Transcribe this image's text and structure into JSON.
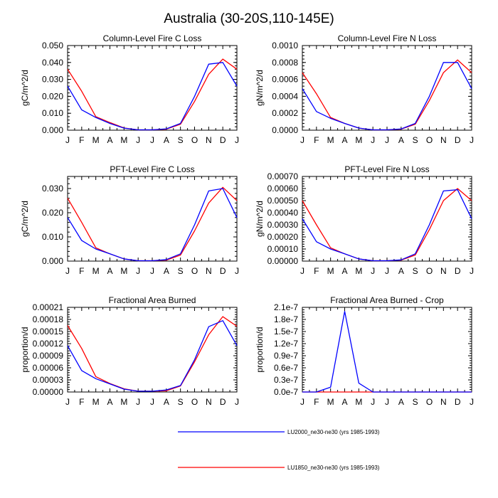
{
  "title": "Australia (30-20S,110-145E)",
  "colors": {
    "lu2000": "#0000ff",
    "lu1850": "#ff0000",
    "axis": "#000000"
  },
  "legend": [
    {
      "label": "LU2000_ne30-ne30 (yrs 1985-1993)",
      "color": "#0000ff"
    },
    {
      "label": "LU1850_ne30-ne30 (yrs 1985-1993)",
      "color": "#ff0000"
    }
  ],
  "chart_data": [
    {
      "type": "line",
      "title": "Column-Level Fire C Loss",
      "ylabel": "gC/m^2/d",
      "xlabel": "",
      "categories": [
        "J",
        "F",
        "M",
        "A",
        "M",
        "J",
        "J",
        "A",
        "S",
        "O",
        "N",
        "D",
        "J"
      ],
      "ylim": [
        0,
        0.05
      ],
      "yticks": [
        "0.000",
        "0.010",
        "0.020",
        "0.030",
        "0.040",
        "0.050"
      ],
      "series": [
        {
          "name": "LU2000_ne30-ne30 (yrs 1985-1993)",
          "color": "#0000ff",
          "values": [
            0.026,
            0.012,
            0.0075,
            0.004,
            0.0012,
            0.0002,
            0.0002,
            0.0008,
            0.004,
            0.02,
            0.039,
            0.04,
            0.026
          ]
        },
        {
          "name": "LU1850_ne30-ne30 (yrs 1985-1993)",
          "color": "#ff0000",
          "values": [
            0.036,
            0.023,
            0.008,
            0.0045,
            0.0013,
            0.0002,
            0.0002,
            0.0006,
            0.0035,
            0.017,
            0.033,
            0.042,
            0.036
          ]
        }
      ]
    },
    {
      "type": "line",
      "title": "Column-Level Fire N Loss",
      "ylabel": "gN/m^2/d",
      "xlabel": "",
      "categories": [
        "J",
        "F",
        "M",
        "A",
        "M",
        "J",
        "J",
        "A",
        "S",
        "O",
        "N",
        "D",
        "J"
      ],
      "ylim": [
        0,
        0.001
      ],
      "yticks": [
        "0.0000",
        "0.0002",
        "0.0004",
        "0.0006",
        "0.0008",
        "0.0010"
      ],
      "series": [
        {
          "name": "LU2000_ne30-ne30 (yrs 1985-1993)",
          "color": "#0000ff",
          "values": [
            0.00049,
            0.00022,
            0.00014,
            8e-05,
            2.5e-05,
            4e-06,
            4e-06,
            1.5e-05,
            8e-05,
            0.0004,
            0.0008,
            0.0008,
            0.00049
          ]
        },
        {
          "name": "LU1850_ne30-ne30 (yrs 1985-1993)",
          "color": "#ff0000",
          "values": [
            0.00068,
            0.00043,
            0.00015,
            8e-05,
            2.5e-05,
            4e-06,
            4e-06,
            1.2e-05,
            7e-05,
            0.00035,
            0.00068,
            0.00083,
            0.00068
          ]
        }
      ]
    },
    {
      "type": "line",
      "title": "PFT-Level Fire C Loss",
      "ylabel": "gC/m^2/d",
      "xlabel": "",
      "categories": [
        "J",
        "F",
        "M",
        "A",
        "M",
        "J",
        "J",
        "A",
        "S",
        "O",
        "N",
        "D",
        "J"
      ],
      "ylim": [
        0,
        0.035
      ],
      "yticks": [
        "0.000",
        "0.010",
        "0.020",
        "0.030"
      ],
      "ytickvalues": [
        0,
        0.01,
        0.02,
        0.03
      ],
      "series": [
        {
          "name": "LU2000_ne30-ne30 (yrs 1985-1993)",
          "color": "#0000ff",
          "values": [
            0.018,
            0.0085,
            0.005,
            0.003,
            0.0009,
            0.00015,
            0.00015,
            0.0006,
            0.003,
            0.015,
            0.029,
            0.03,
            0.018
          ]
        },
        {
          "name": "LU1850_ne30-ne30 (yrs 1985-1993)",
          "color": "#ff0000",
          "values": [
            0.026,
            0.016,
            0.0055,
            0.003,
            0.0009,
            0.00015,
            0.00015,
            0.0004,
            0.0025,
            0.0125,
            0.024,
            0.0305,
            0.025
          ]
        }
      ]
    },
    {
      "type": "line",
      "title": "PFT-Level Fire N Loss",
      "ylabel": "gN/m^2/d",
      "xlabel": "",
      "categories": [
        "J",
        "F",
        "M",
        "A",
        "M",
        "J",
        "J",
        "A",
        "S",
        "O",
        "N",
        "D",
        "J"
      ],
      "ylim": [
        0,
        0.0007
      ],
      "yticks": [
        "0.00000",
        "0.00010",
        "0.00020",
        "0.00030",
        "0.00040",
        "0.00050",
        "0.00060",
        "0.00070"
      ],
      "series": [
        {
          "name": "LU2000_ne30-ne30 (yrs 1985-1993)",
          "color": "#0000ff",
          "values": [
            0.00035,
            0.00016,
            0.0001,
            6e-05,
            1.8e-05,
            3e-06,
            3e-06,
            1e-05,
            6e-05,
            0.0003,
            0.00058,
            0.00059,
            0.00035
          ]
        },
        {
          "name": "LU1850_ne30-ne30 (yrs 1985-1993)",
          "color": "#ff0000",
          "values": [
            0.0005,
            0.0003,
            0.00011,
            6e-05,
            1.8e-05,
            3e-06,
            3e-06,
            8e-06,
            5e-05,
            0.00026,
            0.0005,
            0.0006,
            0.0005
          ]
        }
      ]
    },
    {
      "type": "line",
      "title": "Fractional Area Burned",
      "ylabel": "proportion/d",
      "xlabel": "",
      "categories": [
        "J",
        "F",
        "M",
        "A",
        "M",
        "J",
        "J",
        "A",
        "S",
        "O",
        "N",
        "D",
        "J"
      ],
      "ylim": [
        0,
        0.00021
      ],
      "yticks": [
        "0.00000",
        "0.00003",
        "0.00006",
        "0.00009",
        "0.00012",
        "0.00015",
        "0.00018",
        "0.00021"
      ],
      "series": [
        {
          "name": "LU2000_ne30-ne30 (yrs 1985-1993)",
          "color": "#0000ff",
          "values": [
            0.000115,
            5.3e-05,
            3.3e-05,
            2e-05,
            7e-06,
            2e-06,
            2e-06,
            5e-06,
            1.6e-05,
            8e-05,
            0.000162,
            0.000177,
            0.000115
          ]
        },
        {
          "name": "LU1850_ne30-ne30 (yrs 1985-1993)",
          "color": "#ff0000",
          "values": [
            0.000165,
            0.000108,
            3.8e-05,
            2.1e-05,
            8e-06,
            2e-06,
            2e-06,
            3e-06,
            1.5e-05,
            7.5e-05,
            0.000142,
            0.000187,
            0.000163
          ]
        }
      ]
    },
    {
      "type": "line",
      "title": "Fractional Area Burned - Crop",
      "ylabel": "proportion/d",
      "xlabel": "",
      "categories": [
        "J",
        "F",
        "M",
        "A",
        "M",
        "J",
        "J",
        "A",
        "S",
        "O",
        "N",
        "D",
        "J"
      ],
      "ylim": [
        0,
        2.1e-07
      ],
      "yticks": [
        "0.0e-7",
        "0.3e-7",
        "0.6e-7",
        "0.9e-7",
        "1.2e-7",
        "1.5e-7",
        "1.8e-7",
        "2.1e-7"
      ],
      "series": [
        {
          "name": "LU2000_ne30-ne30 (yrs 1985-1993)",
          "color": "#0000ff",
          "values": [
            0,
            0,
            1.2e-08,
            2e-07,
            2.2e-08,
            0,
            0,
            0,
            0,
            0,
            0,
            0,
            0
          ]
        },
        {
          "name": "LU1850_ne30-ne30 (yrs 1985-1993)",
          "color": "#ff0000",
          "values": [
            0,
            0,
            0,
            0,
            0,
            0,
            0,
            0,
            0,
            0,
            0,
            0,
            0
          ]
        }
      ]
    }
  ]
}
